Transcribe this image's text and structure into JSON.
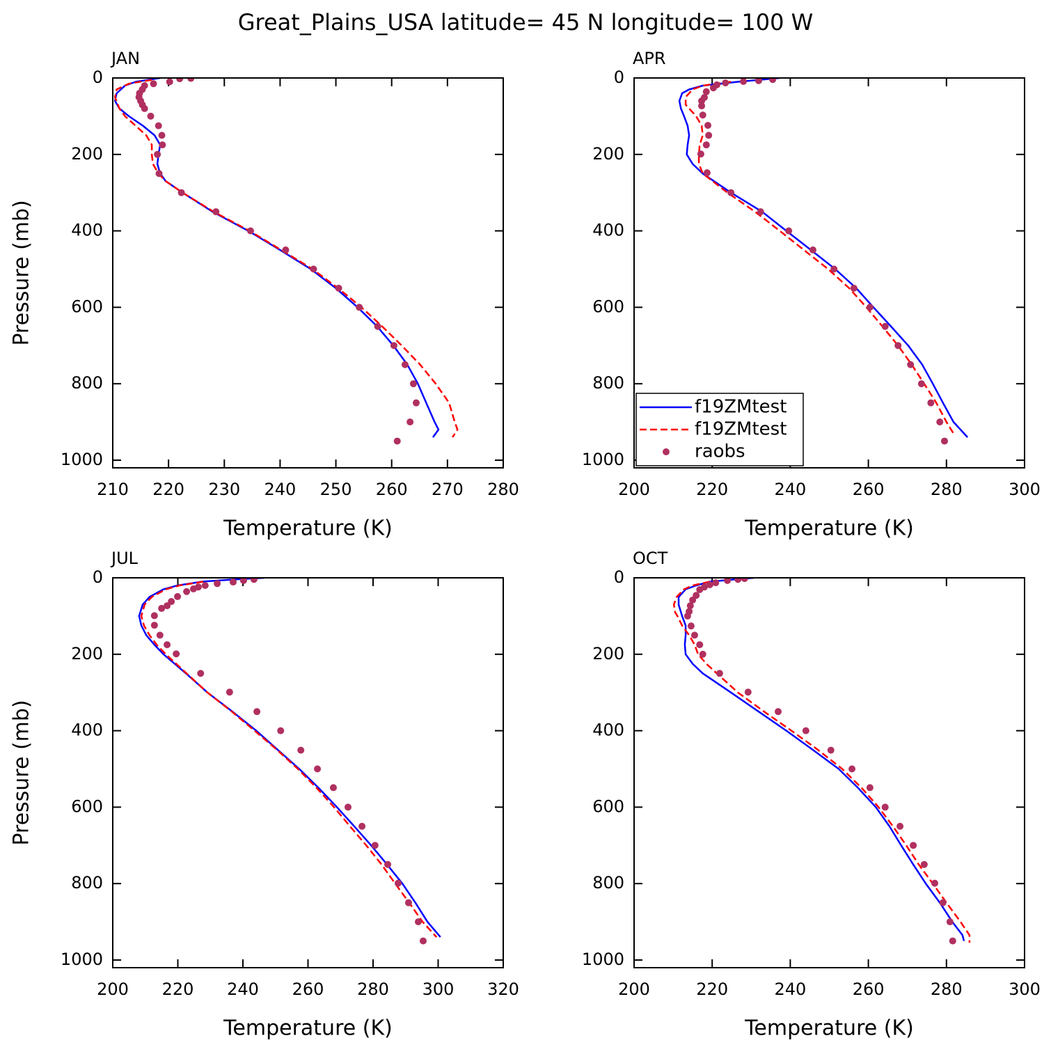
{
  "title": "Great_Plains_USA  latitude= 45 N longitude= 100 W",
  "chart_data": [
    {
      "type": "line",
      "title": "JAN",
      "xlabel": "Temperature (K)",
      "ylabel": "Pressure (mb)",
      "xlim": [
        210,
        280
      ],
      "xticks": [
        210,
        220,
        230,
        240,
        250,
        260,
        270,
        280
      ],
      "ylim": [
        1020,
        0
      ],
      "yticks": [
        0,
        200,
        400,
        600,
        800,
        1000
      ],
      "series": [
        {
          "color": "#0000ff",
          "dashed": false,
          "kind": "line",
          "x": [
            218.5,
            214.1,
            212.2,
            210.7,
            210.4,
            211.2,
            212.9,
            215.4,
            217.5,
            218.5,
            218.2,
            218,
            218.5,
            219.5,
            222.5,
            227.9,
            234.3,
            240,
            245.5,
            250,
            253.9,
            257.4,
            260.3,
            262.8,
            264.7,
            266.2,
            267.7,
            268.4,
            267.4
          ],
          "y": [
            0,
            10,
            20,
            40,
            60,
            80,
            100,
            125,
            150,
            175,
            200,
            225,
            250,
            270,
            300,
            350,
            400,
            450,
            500,
            550,
            600,
            650,
            700,
            750,
            800,
            850,
            900,
            920,
            940
          ]
        },
        {
          "color": "#ff0000",
          "dashed": true,
          "kind": "line",
          "x": [
            217,
            212.9,
            210.7,
            210.4,
            211.2,
            212.2,
            216,
            217,
            217,
            217.2,
            218.2,
            219.5,
            222.5,
            228.1,
            234.5,
            240.2,
            245.8,
            250.4,
            254.6,
            258.3,
            261.8,
            265.1,
            267.9,
            270.3,
            271.3,
            271.8,
            270.9
          ],
          "y": [
            5,
            15,
            30,
            50,
            80,
            100,
            150,
            175,
            200,
            225,
            250,
            270,
            300,
            350,
            400,
            450,
            500,
            550,
            600,
            650,
            700,
            750,
            800,
            850,
            900,
            920,
            940
          ]
        },
        {
          "color": "#b03060",
          "kind": "scatter",
          "x": [
            224,
            222,
            220.2,
            217.3,
            215.7,
            215.3,
            214.8,
            214.7,
            215,
            215.3,
            215.7,
            216.8,
            218.2,
            218.8,
            218.9,
            218,
            218.3,
            222.3,
            228.5,
            234.7,
            241,
            246,
            250.5,
            254.2,
            257.5,
            260.4,
            262.4,
            263.9,
            264.4,
            263.3,
            261
          ],
          "y": [
            1,
            2,
            10,
            15,
            20,
            30,
            40,
            50,
            60,
            70,
            80,
            100,
            125,
            150,
            175,
            200,
            250,
            300,
            350,
            400,
            450,
            500,
            550,
            600,
            650,
            700,
            750,
            800,
            850,
            900,
            950
          ]
        }
      ]
    },
    {
      "type": "line",
      "title": "APR",
      "xlabel": "Temperature (K)",
      "xlim": [
        200,
        300
      ],
      "xticks": [
        200,
        220,
        240,
        260,
        280,
        300
      ],
      "ylim": [
        1020,
        0
      ],
      "yticks": [
        0,
        200,
        400,
        600,
        800,
        1000
      ],
      "legend": "lower left",
      "series": [
        {
          "name": "f19ZMtest",
          "color": "#0000ff",
          "dashed": false,
          "kind": "line",
          "x": [
            237.3,
            226.6,
            217.6,
            214.1,
            212.3,
            211.6,
            212,
            212.8,
            213.7,
            214.1,
            213.7,
            213.5,
            215,
            217.6,
            224.8,
            232.8,
            239,
            245.3,
            251.5,
            256.9,
            261.3,
            265.8,
            270.2,
            273.8,
            276.5,
            279.1,
            281.8,
            285.4
          ],
          "y": [
            0,
            10,
            20,
            30,
            40,
            60,
            80,
            100,
            125,
            150,
            175,
            200,
            225,
            250,
            300,
            350,
            400,
            450,
            500,
            550,
            600,
            650,
            700,
            750,
            800,
            850,
            900,
            940
          ]
        },
        {
          "name": "f19ZMtest",
          "color": "#ff0000",
          "dashed": true,
          "kind": "line",
          "x": [
            224.8,
            217.6,
            215,
            213.2,
            213.2,
            215.9,
            217.3,
            217.6,
            216.8,
            216.6,
            216.6,
            217.6,
            223.9,
            231,
            237.3,
            243.5,
            249.7,
            255.1,
            259.5,
            263.6,
            267.6,
            271.1,
            274.3,
            277.4,
            280,
            281.8
          ],
          "y": [
            10,
            20,
            30,
            50,
            70,
            100,
            125,
            150,
            175,
            200,
            225,
            250,
            300,
            350,
            400,
            450,
            500,
            550,
            600,
            650,
            700,
            750,
            800,
            850,
            900,
            930
          ]
        },
        {
          "name": "raobs",
          "color": "#b03060",
          "kind": "scatter",
          "x": [
            235.5,
            231.9,
            228,
            223.4,
            221.2,
            220.3,
            218.5,
            218,
            217.3,
            217.3,
            217.6,
            218.9,
            219.1,
            218.5,
            217.1,
            218.7,
            224.8,
            232.4,
            239.6,
            245.8,
            251.2,
            256.3,
            260.4,
            264.3,
            267.6,
            270.8,
            273.6,
            276,
            278.3,
            279.5
          ],
          "y": [
            4,
            7,
            9,
            13,
            18,
            26,
            36,
            51,
            60,
            73,
            97,
            124,
            150,
            175,
            199,
            248,
            300,
            350,
            400,
            450,
            500,
            550,
            600,
            650,
            700,
            750,
            800,
            850,
            900,
            950
          ]
        }
      ]
    },
    {
      "type": "line",
      "title": "JUL",
      "xlabel": "Temperature (K)",
      "ylabel": "Pressure (mb)",
      "xlim": [
        200,
        320
      ],
      "xticks": [
        200,
        220,
        240,
        260,
        280,
        300,
        320
      ],
      "ylim": [
        1020,
        0
      ],
      "yticks": [
        0,
        200,
        400,
        600,
        800,
        1000
      ],
      "series": [
        {
          "color": "#0000ff",
          "dashed": false,
          "kind": "line",
          "x": [
            246.6,
            235.9,
            227.4,
            219.9,
            215.6,
            211.3,
            209.2,
            208.1,
            208.8,
            210.3,
            212.8,
            215.6,
            222.5,
            229.1,
            236.8,
            244.1,
            250.7,
            257.3,
            263.3,
            268.9,
            274.2,
            279.4,
            284.3,
            289,
            293,
            296.7,
            300.7
          ],
          "y": [
            0,
            5,
            10,
            20,
            30,
            50,
            70,
            100,
            125,
            150,
            175,
            200,
            250,
            300,
            350,
            400,
            450,
            500,
            550,
            600,
            650,
            700,
            750,
            800,
            850,
            900,
            940
          ]
        },
        {
          "color": "#ff0000",
          "dashed": true,
          "kind": "line",
          "x": [
            227.8,
            220.5,
            216.3,
            212,
            209.8,
            208.8,
            209.6,
            211.3,
            213.5,
            216.3,
            222.7,
            229.1,
            236.6,
            243.6,
            250.5,
            256.9,
            262.7,
            268,
            272.9,
            277.9,
            282.6,
            286.8,
            291.1,
            295.2,
            299.5
          ],
          "y": [
            10,
            20,
            30,
            50,
            70,
            100,
            125,
            150,
            175,
            200,
            250,
            300,
            350,
            400,
            450,
            500,
            550,
            600,
            650,
            700,
            750,
            800,
            850,
            900,
            940
          ]
        },
        {
          "color": "#b03060",
          "kind": "scatter",
          "x": [
            243.4,
            240.2,
            237,
            232.1,
            228.4,
            226.3,
            224.8,
            222.7,
            219.9,
            218,
            216.7,
            215,
            212.8,
            212.8,
            214.5,
            216.7,
            219.5,
            227,
            235.9,
            244.3,
            251.6,
            257.8,
            262.9,
            267.8,
            272.3,
            276.6,
            280.6,
            284.5,
            287.7,
            290.9,
            293.9,
            295.4
          ],
          "y": [
            4,
            7,
            11,
            15,
            20,
            24,
            29,
            36,
            49,
            62,
            73,
            80,
            99,
            124,
            150,
            175,
            199,
            250,
            299,
            350,
            400,
            451,
            500,
            549,
            600,
            650,
            700,
            750,
            799,
            850,
            900,
            950
          ]
        }
      ]
    },
    {
      "type": "line",
      "title": "OCT",
      "xlabel": "Temperature (K)",
      "xlim": [
        200,
        300
      ],
      "xticks": [
        200,
        220,
        240,
        260,
        280,
        300
      ],
      "ylim": [
        1020,
        0
      ],
      "yticks": [
        0,
        200,
        400,
        600,
        800,
        1000
      ],
      "series": [
        {
          "color": "#0000ff",
          "dashed": false,
          "kind": "line",
          "x": [
            230.7,
            224.8,
            219.4,
            215.9,
            213.2,
            211.4,
            211.4,
            212.3,
            213.2,
            213.2,
            213,
            213.2,
            215,
            217.6,
            224.8,
            231.9,
            239,
            245.8,
            252.4,
            257.4,
            261.9,
            265.4,
            268.4,
            271.5,
            274.7,
            278.3,
            281.5,
            284.1,
            284.5
          ],
          "y": [
            0,
            5,
            10,
            20,
            30,
            50,
            70,
            100,
            125,
            150,
            175,
            200,
            225,
            250,
            300,
            350,
            400,
            450,
            500,
            550,
            600,
            650,
            700,
            750,
            800,
            850,
            900,
            935,
            950
          ]
        },
        {
          "color": "#ff0000",
          "dashed": true,
          "kind": "line",
          "x": [
            219.4,
            214.97,
            212.8,
            210.9,
            210.2,
            210.5,
            211.1,
            212.3,
            214.1,
            215.5,
            216.4,
            218.5,
            221.2,
            226.6,
            233.3,
            240.3,
            247.1,
            253.3,
            258.3,
            262.6,
            266.3,
            269.7,
            272.9,
            276.5,
            280,
            283.6,
            285.9,
            285.9
          ],
          "y": [
            10,
            20,
            30,
            50,
            70,
            90,
            100,
            125,
            150,
            175,
            200,
            225,
            250,
            300,
            350,
            400,
            450,
            500,
            550,
            600,
            650,
            700,
            750,
            800,
            850,
            900,
            935,
            955
          ]
        },
        {
          "color": "#b03060",
          "kind": "scatter",
          "x": [
            228.3,
            226.6,
            223.9,
            220.9,
            219.4,
            218,
            216.8,
            215.9,
            215,
            214.4,
            214.1,
            213.7,
            214.6,
            215.5,
            216.8,
            217.6,
            221.9,
            229.2,
            236.9,
            244,
            250.4,
            255.8,
            260.4,
            264.3,
            268.1,
            271.5,
            274.3,
            277,
            279.1,
            280.9,
            281.6
          ],
          "y": [
            2,
            4,
            7,
            13,
            18,
            24,
            31,
            46,
            58,
            73,
            88,
            100,
            126,
            150,
            175,
            200,
            250,
            299,
            350,
            400,
            451,
            500,
            549,
            600,
            650,
            700,
            750,
            799,
            850,
            900,
            950
          ]
        }
      ]
    }
  ]
}
